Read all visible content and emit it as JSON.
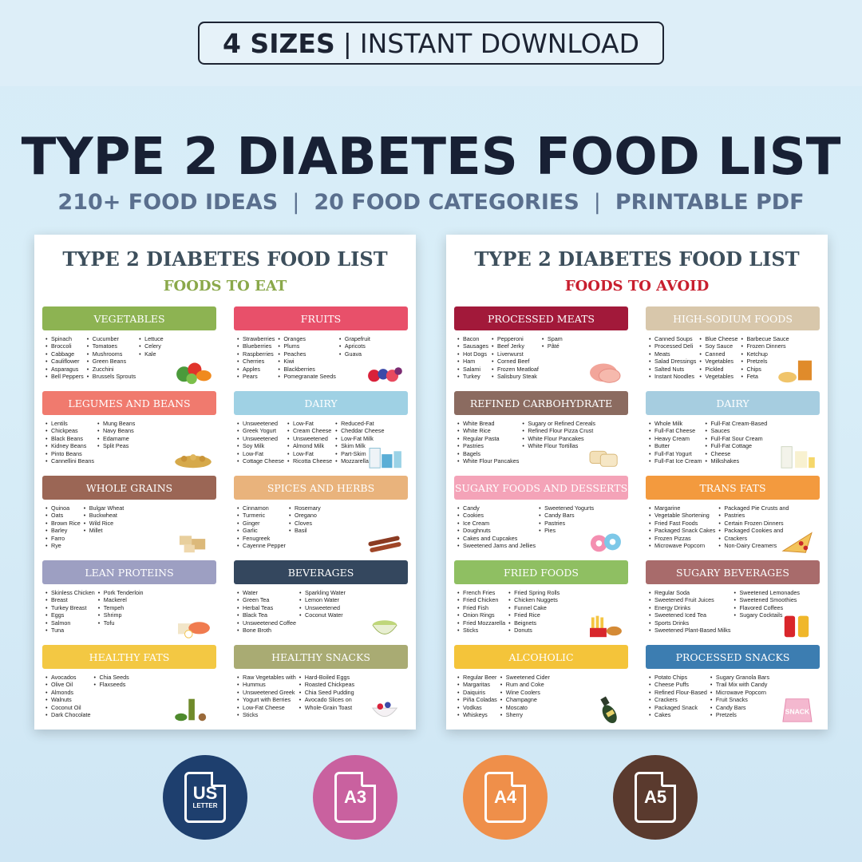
{
  "banner": {
    "sizes": "4 SIZES",
    "separator": "|",
    "download": "INSTANT DOWNLOAD"
  },
  "headline": {
    "title": "TYPE 2 DIABETES FOOD LIST",
    "features": [
      "210+ FOOD IDEAS",
      "20 FOOD CATEGORIES",
      "PRINTABLE PDF"
    ],
    "separator": "|"
  },
  "sheets": {
    "eat": {
      "title": "TYPE 2 DIABETES FOOD LIST",
      "subtitle": "FOODS TO EAT",
      "subtitle_color": "#8aa84a",
      "categories": [
        {
          "name": "VEGETABLES",
          "color": "#8db352",
          "icon": "vegetables-icon",
          "columns": [
            [
              "Spinach",
              "Broccoli",
              "Cabbage",
              "Cauliflower",
              "Asparagus",
              "Bell Peppers"
            ],
            [
              "Cucumber",
              "Tomatoes",
              "Mushrooms",
              "Green Beans",
              "Zucchini",
              "Brussels Sprouts"
            ],
            [
              "Lettuce",
              "Celery",
              "Kale"
            ]
          ]
        },
        {
          "name": "FRUITS",
          "color": "#e8506a",
          "icon": "fruits-icon",
          "columns": [
            [
              "Strawberries",
              "Blueberries",
              "Raspberries",
              "Cherries",
              "Apples",
              "Pears"
            ],
            [
              "Oranges",
              "Plums",
              "Peaches",
              "Kiwi",
              "Blackberries",
              "Pomegranate Seeds"
            ],
            [
              "Grapefruit",
              "Apricots",
              "Guava"
            ]
          ]
        },
        {
          "name": "LEGUMES AND BEANS",
          "color": "#f07a6e",
          "icon": "beans-icon",
          "columns": [
            [
              "Lentils",
              "Chickpeas",
              "Black Beans",
              "Kidney Beans",
              "Pinto Beans",
              "Cannellini Beans"
            ],
            [
              "Mung Beans",
              "Navy Beans",
              "Edamame",
              "Split Peas"
            ]
          ]
        },
        {
          "name": "DAIRY",
          "color": "#9fd1e4",
          "icon": "dairy-icon",
          "columns": [
            [
              "Unsweetened",
              "Greek Yogurt",
              "Unsweetened",
              "Soy Milk",
              "Low-Fat",
              "Cottage Cheese"
            ],
            [
              "Low-Fat",
              "Cream Cheese",
              "Unsweetened",
              "Almond Milk",
              "Low-Fat",
              "Ricotta Cheese"
            ],
            [
              "Reduced-Fat",
              "Cheddar Cheese",
              "Low-Fat Milk",
              "Skim Milk",
              "Part-Skim",
              "Mozzarella"
            ]
          ]
        },
        {
          "name": "WHOLE GRAINS",
          "color": "#9b6655",
          "icon": "grains-icon",
          "columns": [
            [
              "Quinoa",
              "Oats",
              "Brown Rice",
              "Barley",
              "Farro",
              "Rye"
            ],
            [
              "Bulgar Wheat",
              "Buckwheat",
              "Wild Rice",
              "Millet"
            ]
          ]
        },
        {
          "name": "SPICES AND HERBS",
          "color": "#e9b37c",
          "icon": "spices-icon",
          "columns": [
            [
              "Cinnamon",
              "Turmeric",
              "Ginger",
              "Garlic",
              "Fenugreek",
              "Cayenne Pepper"
            ],
            [
              "Rosemary",
              "Oregano",
              "Cloves",
              "Basil"
            ]
          ]
        },
        {
          "name": "LEAN PROTEINS",
          "color": "#9d9fc2",
          "icon": "protein-icon",
          "columns": [
            [
              "Skinless Chicken",
              "Breast",
              "Turkey Breast",
              "Eggs",
              "Salmon",
              "Tuna"
            ],
            [
              "Pork Tenderloin",
              "Mackerel",
              "Tempeh",
              "Shrimp",
              "Tofu"
            ]
          ]
        },
        {
          "name": "BEVERAGES",
          "color": "#34475e",
          "icon": "beverages-icon",
          "columns": [
            [
              "Water",
              "Green Tea",
              "Herbal Teas",
              "Black Tea",
              "Unsweetened Coffee",
              "Bone Broth"
            ],
            [
              "Sparkling Water",
              "Lemon Water",
              "Unsweetened",
              "Coconut Water"
            ]
          ]
        },
        {
          "name": "HEALTHY FATS",
          "color": "#f3c843",
          "icon": "fats-icon",
          "columns": [
            [
              "Avocados",
              "Olive Oil",
              "Almonds",
              "Walnuts",
              "Coconut Oil",
              "Dark Chocolate"
            ],
            [
              "Chia Seeds",
              "Flaxseeds"
            ]
          ]
        },
        {
          "name": "HEALTHY SNACKS",
          "color": "#a9ab73",
          "icon": "snacks-icon",
          "columns": [
            [
              "Raw Vegetables with",
              "Hummus",
              "Unsweetened Greek",
              "Yogurt with Berries",
              "Low-Fat Cheese",
              "Sticks"
            ],
            [
              "Hard-Boiled Eggs",
              "Roasted Chickpeas",
              "Chia Seed Pudding",
              "Avocado Slices on",
              "Whole-Grain Toast"
            ]
          ]
        }
      ]
    },
    "avoid": {
      "title": "TYPE 2 DIABETES FOOD LIST",
      "subtitle": "FOODS TO AVOID",
      "subtitle_color": "#c81e2e",
      "categories": [
        {
          "name": "PROCESSED MEATS",
          "color": "#a2193a",
          "icon": "ham-icon",
          "columns": [
            [
              "Bacon",
              "Sausages",
              "Hot Dogs",
              "Ham",
              "Salami",
              "Turkey"
            ],
            [
              "Pepperoni",
              "Beef Jerky",
              "Liverwurst",
              "Corned Beef",
              "Frozen Meatloaf",
              "Salisbury Steak"
            ],
            [
              "Spam",
              "Pâté"
            ]
          ]
        },
        {
          "name": "HIGH-SODIUM FOODS",
          "color": "#d8c7ab",
          "icon": "chips-icon",
          "columns": [
            [
              "Canned Soups",
              "Processed Deli",
              "Meats",
              "Salad Dressings",
              "Salted Nuts",
              "Instant Noodles"
            ],
            [
              "Blue Cheese",
              "Soy Sauce",
              "Canned",
              "Vegetables",
              "Pickled",
              "Vegetables"
            ],
            [
              "Barbecue Sauce",
              "Frozen Dinners",
              "Ketchup",
              "Pretzels",
              "Chips",
              "Feta"
            ]
          ]
        },
        {
          "name": "REFINED CARBOHYDRATE",
          "color": "#8b6b60",
          "icon": "bread-icon",
          "columns": [
            [
              "White Bread",
              "White Rice",
              "Regular Pasta",
              "Pastries",
              "Bagels",
              "White Flour Pancakes"
            ],
            [
              "Sugary or Refined Cereals",
              "Refined Flour Pizza Crust",
              "White Flour Pancakes",
              "White Flour Tortillas"
            ]
          ]
        },
        {
          "name": "DAIRY",
          "color": "#a6cde0",
          "icon": "milk-icon",
          "columns": [
            [
              "Whole Milk",
              "Full-Fat Cheese",
              "Heavy Cream",
              "Butter",
              "Full-Fat Yogurt",
              "Full-Fat Ice Cream"
            ],
            [
              "Full-Fat Cream-Based",
              "Sauces",
              "Full-Fat Sour Cream",
              "Full-Fat Cottage",
              "Cheese",
              "Milkshakes"
            ]
          ]
        },
        {
          "name": "SUGARY FOODS AND DESSERTS",
          "color": "#f4a3b8",
          "icon": "donut-icon",
          "columns": [
            [
              "Candy",
              "Cookies",
              "Ice Cream",
              "Doughnuts",
              "Cakes and Cupcakes",
              "Sweetened Jams and Jellies"
            ],
            [
              "Sweetened Yogurts",
              "Candy Bars",
              "Pastries",
              "Pies"
            ]
          ]
        },
        {
          "name": "TRANS FATS",
          "color": "#f39a3e",
          "icon": "pizza-icon",
          "columns": [
            [
              "Margarine",
              "Vegetable Shortening",
              "Fried Fast Foods",
              "Packaged Snack Cakes",
              "Frozen Pizzas",
              "Microwave Popcorn"
            ],
            [
              "Packaged Pie Crusts and",
              "Pastries",
              "Certain Frozen Dinners",
              "Packaged Cookies and",
              "Crackers",
              "Non-Dairy Creamers"
            ]
          ]
        },
        {
          "name": "FRIED FOODS",
          "color": "#8fbf62",
          "icon": "fries-icon",
          "columns": [
            [
              "French Fries",
              "Fried Chicken",
              "Fried Fish",
              "Onion Rings",
              "Fried Mozzarella",
              "Sticks"
            ],
            [
              "Fried Spring Rolls",
              "Chicken Nuggets",
              "Funnel Cake",
              "Fried Rice",
              "Beignets",
              "Donuts"
            ]
          ]
        },
        {
          "name": "SUGARY BEVERAGES",
          "color": "#a86b6b",
          "icon": "soda-icon",
          "columns": [
            [
              "Regular Soda",
              "Sweetened Fruit Juices",
              "Energy Drinks",
              "Sweetened Iced Tea",
              "Sports Drinks",
              "Sweetened Plant-Based Milks"
            ],
            [
              "Sweetened Lemonades",
              "Sweetened Smoothies",
              "Flavored Coffees",
              "Sugary Cocktails"
            ]
          ]
        },
        {
          "name": "ALCOHOLIC",
          "color": "#f4c43a",
          "icon": "champagne-icon",
          "columns": [
            [
              "Regular Beer",
              "Margaritas",
              "Daiquiris",
              "Piña Coladas",
              "Vodkas",
              "Whiskeys"
            ],
            [
              "Sweetened Cider",
              "Rum and Coke",
              "Wine Coolers",
              "Champagne",
              "Moscato",
              "Sherry"
            ]
          ]
        },
        {
          "name": "PROCESSED SNACKS",
          "color": "#3c7db1",
          "icon": "snack-bag-icon",
          "columns": [
            [
              "Potato Chips",
              "Cheese Puffs",
              "Refined Flour-Based",
              "Crackers",
              "Packaged Snack",
              "Cakes"
            ],
            [
              "Sugary Granola Bars",
              "Trail Mix with Candy",
              "Microwave Popcorn",
              "Fruit Snacks",
              "Candy Bars",
              "Pretzels"
            ]
          ]
        }
      ]
    }
  },
  "formats": [
    {
      "label": "US",
      "small": "LETTER",
      "color": "#1e3f6e",
      "icon": "us-letter-file-icon"
    },
    {
      "label": "A3",
      "small": "",
      "color": "#c9619f",
      "icon": "a3-file-icon"
    },
    {
      "label": "A4",
      "small": "",
      "color": "#ef8f4a",
      "icon": "a4-file-icon"
    },
    {
      "label": "A5",
      "small": "",
      "color": "#5a3a2e",
      "icon": "a5-file-icon"
    }
  ],
  "snack_bag_text": "SNACK"
}
